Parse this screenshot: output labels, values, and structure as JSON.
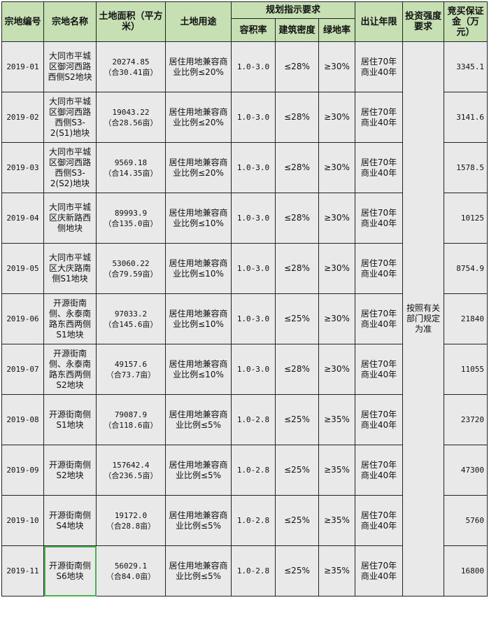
{
  "header": {
    "id": "宗地编号",
    "name": "宗地名称",
    "area": "土地面积（平方米）",
    "use": "土地用途",
    "planning": "规划指示要求",
    "far": "容积率",
    "density": "建筑密度",
    "green": "绿地率",
    "term": "出让年限",
    "investment": "投资强度要求",
    "deposit": "竞买保证金（万元）"
  },
  "investment_note": "按照有关部门规定为准",
  "rows": [
    {
      "id": "2019-01",
      "name": "大同市平城区御河西路西侧S2地块",
      "area": "20274.85",
      "mu": "（合30.41亩）",
      "use": "居住用地兼容商业比例≤20%",
      "far": "1.0-3.0",
      "density": "≤28%",
      "green": "≥30%",
      "term": "居住70年商业40年",
      "deposit": "3345.1"
    },
    {
      "id": "2019-02",
      "name": "大同市平城区御河西路西侧S3-2(S1)地块",
      "area": "19043.22",
      "mu": "（合28.56亩）",
      "use": "居住用地兼容商业比例≤20%",
      "far": "1.0-3.0",
      "density": "≤28%",
      "green": "≥30%",
      "term": "居住70年商业40年",
      "deposit": "3141.6"
    },
    {
      "id": "2019-03",
      "name": "大同市平城区御河西路西侧S3-2(S2)地块",
      "area": "9569.18",
      "mu": "（合14.35亩）",
      "use": "居住用地兼容商业比例≤20%",
      "far": "1.0-3.0",
      "density": "≤28%",
      "green": "≥30%",
      "term": "居住70年商业40年",
      "deposit": "1578.5"
    },
    {
      "id": "2019-04",
      "name": "大同市平城区庆新路西侧地块",
      "area": "89993.9",
      "mu": "（合135.0亩）",
      "use": "居住用地兼容商业比例≤10%",
      "far": "1.0-3.0",
      "density": "≤28%",
      "green": "≥30%",
      "term": "居住70年商业40年",
      "deposit": "10125"
    },
    {
      "id": "2019-05",
      "name": "大同市平城区大庆路南侧S1地块",
      "area": "53060.22",
      "mu": "（合79.59亩）",
      "use": "居住用地兼容商业比例≤10%",
      "far": "1.0-3.0",
      "density": "≤28%",
      "green": "≥30%",
      "term": "居住70年商业40年",
      "deposit": "8754.9"
    },
    {
      "id": "2019-06",
      "name": "开源街南侧、永泰南路东西两侧S1地块",
      "area": "97033.2",
      "mu": "（合145.6亩）",
      "use": "居住用地兼容商业比例≤10%",
      "far": "1.0-3.0",
      "density": "≤25%",
      "green": "≥30%",
      "term": "居住70年商业40年",
      "deposit": "21840"
    },
    {
      "id": "2019-07",
      "name": "开源街南侧、永泰南路东西两侧S2地块",
      "area": "49157.6",
      "mu": "（合73.7亩）",
      "use": "居住用地兼容商业比例≤10%",
      "far": "1.0-3.0",
      "density": "≤28%",
      "green": "≥30%",
      "term": "居住70年商业40年",
      "deposit": "11055"
    },
    {
      "id": "2019-08",
      "name": "开源街南侧S1地块",
      "area": "79087.9",
      "mu": "（合118.6亩）",
      "use": "居住用地兼容商业比例≤5%",
      "far": "1.0-2.8",
      "density": "≤25%",
      "green": "≥35%",
      "term": "居住70年商业40年",
      "deposit": "23720"
    },
    {
      "id": "2019-09",
      "name": "开源街南侧S2地块",
      "area": "157642.4",
      "mu": "（合236.5亩）",
      "use": "居住用地兼容商业比例≤5%",
      "far": "1.0-2.8",
      "density": "≤25%",
      "green": "≥35%",
      "term": "居住70年商业40年",
      "deposit": "47300"
    },
    {
      "id": "2019-10",
      "name": "开源街南侧S4地块",
      "area": "19172.0",
      "mu": "（合28.8亩）",
      "use": "居住用地兼容商业比例≤5%",
      "far": "1.0-2.8",
      "density": "≤25%",
      "green": "≥35%",
      "term": "居住70年商业40年",
      "deposit": "5760"
    },
    {
      "id": "2019-11",
      "name": "开源街南侧S6地块",
      "area": "56029.1",
      "mu": "（合84.0亩）",
      "use": "居住用地兼容商业比例≤5%",
      "far": "1.0-2.8",
      "density": "≤25%",
      "green": "≥35%",
      "term": "居住70年商业40年",
      "deposit": "16800"
    }
  ],
  "colors": {
    "header_bg": "#c6e0b4",
    "cell_bg": "#e9e9e9",
    "selection": "#4caf50"
  }
}
